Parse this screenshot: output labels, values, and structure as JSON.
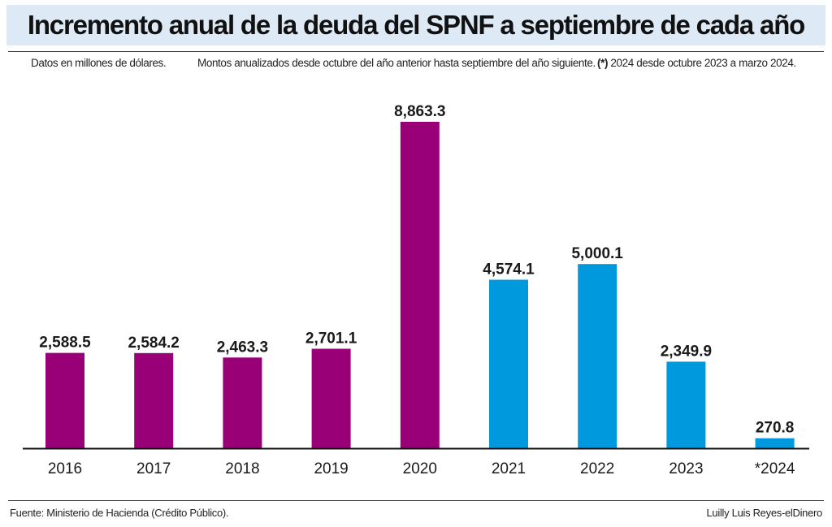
{
  "header": {
    "title": "Incremento anual de la deuda del SPNF a septiembre de cada año"
  },
  "notes": {
    "units": "Datos en millones de dólares.",
    "period": "Montos anualizados desde octubre del año anterior hasta septiembre del año siguiente.",
    "asterisk_mark": "(*)",
    "asterisk_text": "2024 desde octubre 2023 a marzo 2024."
  },
  "footer": {
    "source": "Fuente: Ministerio de Hacienda (Crédito Público).",
    "credit": "Luilly Luis Reyes-elDinero"
  },
  "chart_data": {
    "type": "bar",
    "title": "Incremento anual de la deuda del SPNF a septiembre de cada año",
    "xlabel": "",
    "ylabel": "",
    "categories": [
      "2016",
      "2017",
      "2018",
      "2019",
      "2020",
      "2021",
      "2022",
      "2023",
      "*2024"
    ],
    "values": [
      2588.5,
      2584.2,
      2463.3,
      2701.1,
      8863.3,
      4574.1,
      5000.1,
      2349.9,
      270.8
    ],
    "value_labels": [
      "2,588.5",
      "2,584.2",
      "2,463.3",
      "2,701.1",
      "8,863.3",
      "4,574.1",
      "5,000.1",
      "2,349.9",
      "270.8"
    ],
    "bar_colors": [
      "#990077",
      "#990077",
      "#990077",
      "#990077",
      "#990077",
      "#0099dd",
      "#0099dd",
      "#0099dd",
      "#0099dd"
    ],
    "ylim": [
      0,
      8863.3
    ],
    "grid": false,
    "legend": "none"
  }
}
